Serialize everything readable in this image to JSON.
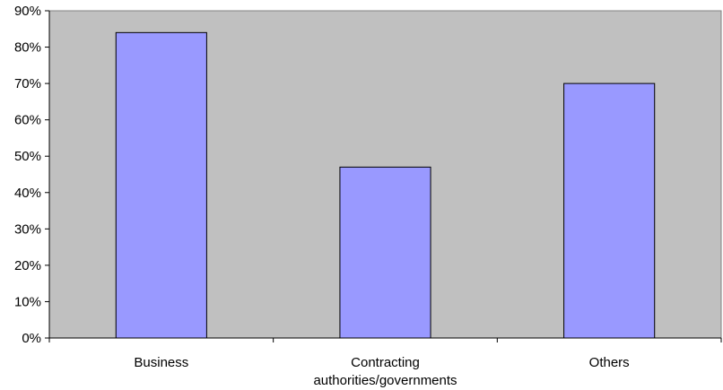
{
  "chart_data": {
    "type": "bar",
    "title": "",
    "xlabel": "",
    "ylabel": "",
    "categories": [
      "Business",
      "Contracting authorities/governments",
      "Others"
    ],
    "category_label_lines": [
      [
        "Business"
      ],
      [
        "Contracting",
        "authorities/governments"
      ],
      [
        "Others"
      ]
    ],
    "values": [
      84,
      47,
      70
    ],
    "ylim": [
      0,
      90
    ],
    "yticks": [
      0,
      10,
      20,
      30,
      40,
      50,
      60,
      70,
      80,
      90
    ],
    "ytick_labels": [
      "0%",
      "10%",
      "20%",
      "30%",
      "40%",
      "50%",
      "60%",
      "70%",
      "80%",
      "90%"
    ],
    "grid": false,
    "legend": "none",
    "colors": {
      "plot_background": "#c0c0c0",
      "bar_fill": "#9999ff",
      "bar_stroke": "#000000"
    }
  }
}
